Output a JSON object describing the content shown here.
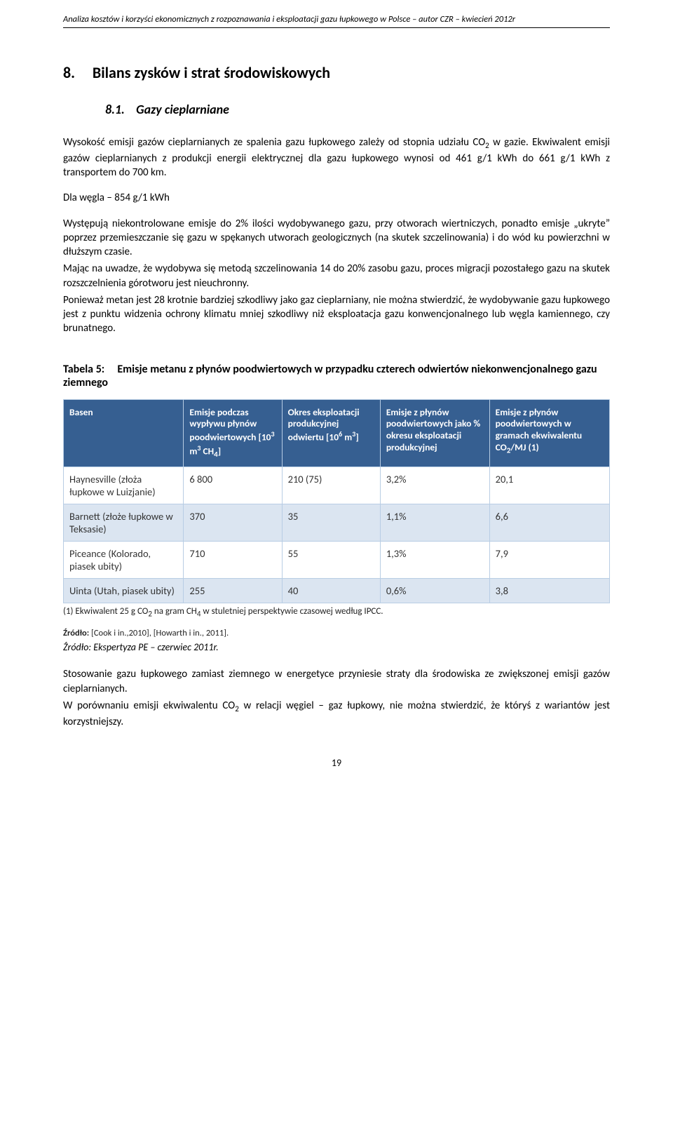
{
  "header": "Analiza kosztów i korzyści ekonomicznych z rozpoznawania i eksploatacji gazu łupkowego w Polsce – autor CZR – kwiecień 2012r",
  "section": {
    "number": "8.",
    "title": "Bilans zysków i strat środowiskowych"
  },
  "subsection": {
    "number": "8.1.",
    "title": "Gazy cieplarniane"
  },
  "para1_a": "Wysokość emisji gazów cieplarnianych ze spalenia gazu łupkowego zależy od stopnia udziału CO",
  "para1_sub": "2",
  "para1_b": " w gazie. Ekwiwalent emisji gazów cieplarnianych z produkcji energii elektrycznej dla gazu łupkowego wynosi od 461 g/1 kWh do 661 g/1 kWh z transportem do 700 km.",
  "para2": "Dla węgla – 854 g/1 kWh",
  "para3": "Występują niekontrolowane emisje do 2% ilości wydobywanego gazu, przy otworach wiertniczych, ponadto emisje „ukryte” poprzez przemieszczanie się gazu w spękanych utworach geologicznych (na skutek szczelinowania) i do wód ku powierzchni w dłuższym czasie.",
  "para4": "Mając na uwadze, że wydobywa się metodą szczelinowania 14 do 20% zasobu gazu, proces migracji pozostałego gazu na skutek rozszczelnienia górotworu jest nieuchronny.",
  "para5": "Ponieważ metan jest 28 krotnie bardziej szkodliwy jako gaz cieplarniany, nie można stwierdzić, że wydobywanie gazu łupkowego jest z punktu widzenia ochrony klimatu mniej szkodliwy niż eksploatacja gazu konwencjonalnego lub węgla kamiennego, czy brunatnego.",
  "table": {
    "title_label": "Tabela 5:",
    "title_text": "Emisje metanu z płynów poodwiertowych w przypadku czterech odwiertów niekonwencjonalnego gazu ziemnego",
    "headers": {
      "basin": "Basen",
      "colA": "Emisje podczas wypływu płynów poodwiertowych [10³ m³ CH₄]",
      "colB": "Okres eksploatacji produkcyjnej odwiertu [10⁶ m³]",
      "colC": "Emisje z płynów poodwiertowych jako % okresu eksploatacji produkcyjnej",
      "colD": "Emisje z płynów poodwiertowych w gramach ekwiwalentu CO₂/MJ (1)"
    },
    "rows": [
      {
        "basin": "Haynesville (złoża łupkowe w Luizjanie)",
        "a": "6 800",
        "b": "210 (75)",
        "c": "3,2%",
        "d": "20,1"
      },
      {
        "basin": "Barnett (złoże łupkowe w Teksasie)",
        "a": "370",
        "b": "35",
        "c": "1,1%",
        "d": "6,6"
      },
      {
        "basin": "Piceance (Kolorado, piasek ubity)",
        "a": "710",
        "b": "55",
        "c": "1,3%",
        "d": "7,9"
      },
      {
        "basin": "Uinta (Utah, piasek ubity)",
        "a": "255",
        "b": "40",
        "c": "0,6%",
        "d": "3,8"
      }
    ],
    "footnote": "(1) Ekwiwalent 25 g CO₂ na gram CH₄ w stuletniej perspektywie czasowej według IPCC.",
    "source_label": "Źródło:",
    "source_text": " [Cook i in.,2010], [Howarth i in., 2011]."
  },
  "caption": "Źródło: Ekspertyza PE – czerwiec 2011r.",
  "para6": "Stosowanie gazu łupkowego zamiast ziemnego w energetyce przyniesie straty dla środowiska ze zwiększonej emisji gazów cieplarnianych.",
  "para7_a": "W porównaniu emisji ekwiwalentu CO",
  "para7_sub": "2",
  "para7_b": " w relacji węgiel – gaz łupkowy, nie można stwierdzić, że któryś z wariantów jest korzystniejszy.",
  "page_number": "19",
  "colors": {
    "table_header_bg": "#365f91",
    "table_header_fg": "#ffffff",
    "table_border": "#b8cde4",
    "row_alt_bg": "#dbe5f1"
  }
}
